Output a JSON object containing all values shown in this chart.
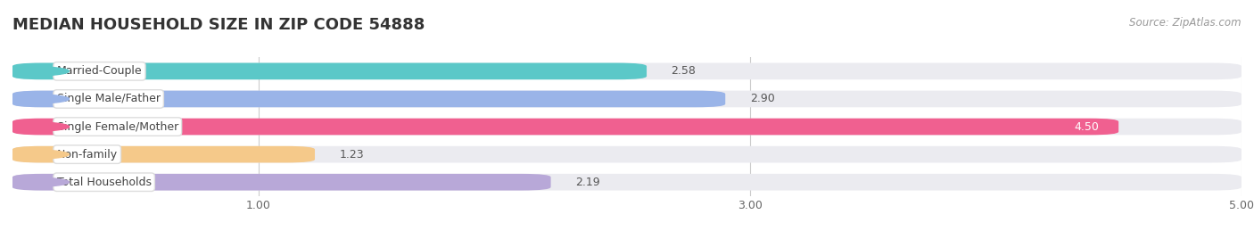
{
  "title": "MEDIAN HOUSEHOLD SIZE IN ZIP CODE 54888",
  "source": "Source: ZipAtlas.com",
  "categories": [
    "Married-Couple",
    "Single Male/Father",
    "Single Female/Mother",
    "Non-family",
    "Total Households"
  ],
  "values": [
    2.58,
    2.9,
    4.5,
    1.23,
    2.19
  ],
  "colors": [
    "#5bc8c8",
    "#9ab4e8",
    "#f06090",
    "#f5c98a",
    "#b8a8d8"
  ],
  "xlim": [
    0,
    5.0
  ],
  "xstart": 0.0,
  "xticks": [
    1.0,
    3.0,
    5.0
  ],
  "xtick_labels": [
    "1.00",
    "3.00",
    "5.00"
  ],
  "background_color": "#ffffff",
  "bar_bg_color": "#ebebf0",
  "title_fontsize": 13,
  "label_fontsize": 9,
  "value_fontsize": 9,
  "source_fontsize": 8.5
}
